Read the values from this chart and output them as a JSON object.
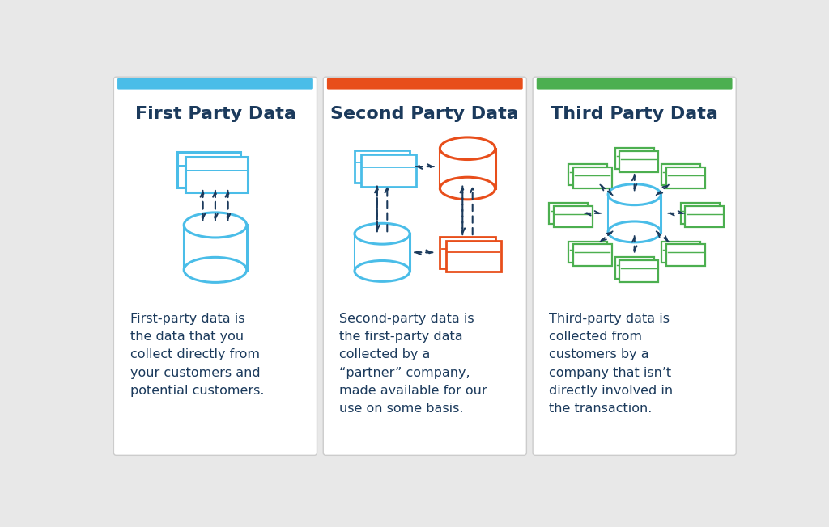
{
  "bg_color": "#e8e8e8",
  "card_bg": "#ffffff",
  "titles": [
    "First Party Data",
    "Second Party Data",
    "Third Party Data"
  ],
  "title_color": "#1b3a5c",
  "accent_colors": [
    "#4abde8",
    "#e84e1b",
    "#4caf50"
  ],
  "blue": "#4abde8",
  "orange": "#e84e1b",
  "green": "#4caf50",
  "dark_navy": "#1b3a5c",
  "descriptions": [
    "First-party data is\nthe data that you\ncollect directly from\nyour customers and\npotential customers.",
    "Second-party data is\nthe first-party data\ncollected by a\n“partner” company,\nmade available for our\nuse on some basis.",
    "Third-party data is\ncollected from\ncustomers by a\ncompany that isn’t\ndirectly involved in\nthe transaction."
  ]
}
